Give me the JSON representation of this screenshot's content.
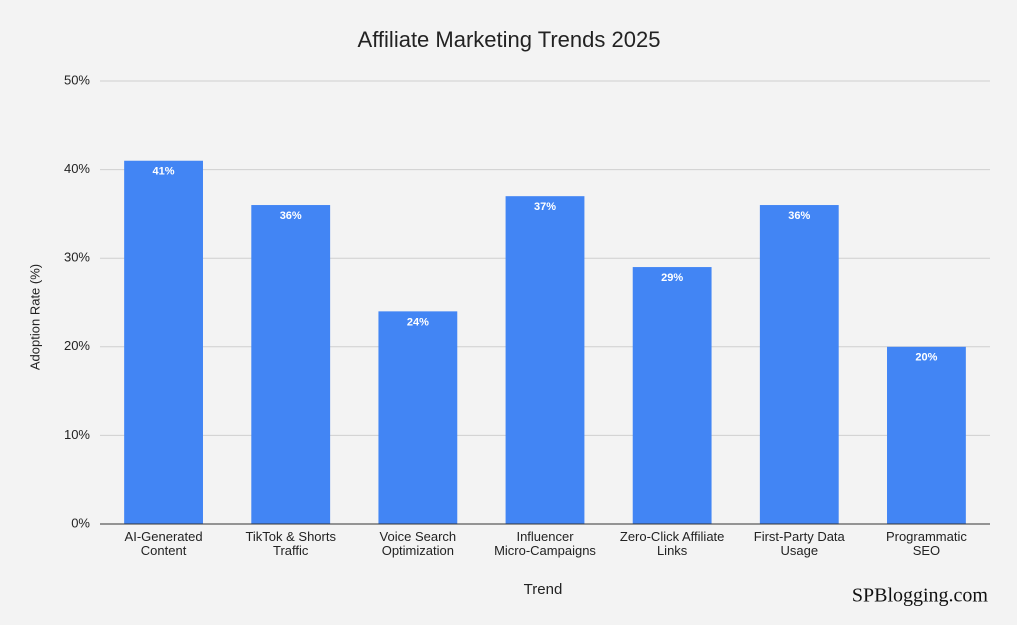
{
  "chart_data": {
    "type": "bar",
    "title": "Affiliate Marketing Trends 2025",
    "x_label": "Trend",
    "y_label": "Adoption Rate (%)",
    "categories": [
      "AI-Generated\nContent",
      "TikTok & Shorts\nTraffic",
      "Voice Search\nOptimization",
      "Influencer\nMicro-Campaigns",
      "Zero-Click Affiliate\nLinks",
      "First-Party Data\nUsage",
      "Programmatic\nSEO"
    ],
    "values": [
      41,
      36,
      24,
      37,
      29,
      36,
      20
    ],
    "value_labels": [
      "41%",
      "36%",
      "24%",
      "37%",
      "29%",
      "36%",
      "20%"
    ],
    "color": "#4285f4",
    "ylim": [
      0,
      50
    ],
    "yticks": [
      {
        "value": 0,
        "label": "0%"
      },
      {
        "value": 10,
        "label": "10%"
      },
      {
        "value": 20,
        "label": "20%"
      },
      {
        "value": 30,
        "label": "30%"
      },
      {
        "value": 40,
        "label": "40%"
      },
      {
        "value": 50,
        "label": "50%"
      }
    ],
    "grid": true,
    "watermark": "SPBlogging.com"
  }
}
